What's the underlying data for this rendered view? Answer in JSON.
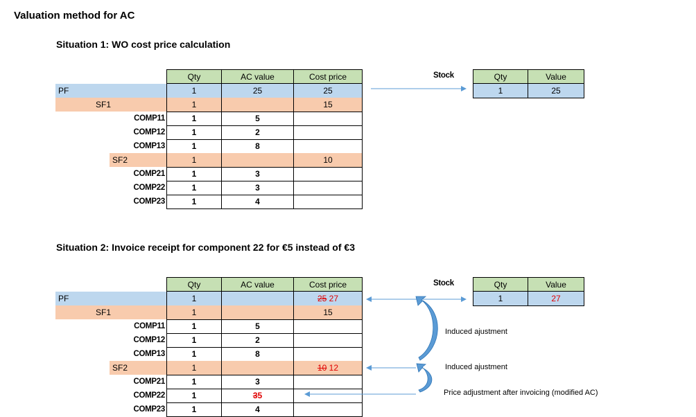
{
  "title": "Valuation method for AC",
  "situation1": {
    "heading": "Situation 1: WO cost price calculation",
    "headers": {
      "qty": "Qty",
      "ac_value": "AC value",
      "cost_price": "Cost price"
    },
    "rows": [
      {
        "label": "PF",
        "qty": "1",
        "ac": "25",
        "cost": "25"
      },
      {
        "label": "SF1",
        "qty": "1",
        "ac": "",
        "cost": "15"
      },
      {
        "label": "COMP11",
        "qty": "1",
        "ac": "5",
        "cost": ""
      },
      {
        "label": "COMP12",
        "qty": "1",
        "ac": "2",
        "cost": ""
      },
      {
        "label": "COMP13",
        "qty": "1",
        "ac": "8",
        "cost": ""
      },
      {
        "label": "SF2",
        "qty": "1",
        "ac": "",
        "cost": "10"
      },
      {
        "label": "COMP21",
        "qty": "1",
        "ac": "3",
        "cost": ""
      },
      {
        "label": "COMP22",
        "qty": "1",
        "ac": "3",
        "cost": ""
      },
      {
        "label": "COMP23",
        "qty": "1",
        "ac": "4",
        "cost": ""
      }
    ],
    "stock": {
      "label": "Stock",
      "qty_header": "Qty",
      "value_header": "Value",
      "qty": "1",
      "value": "25"
    }
  },
  "situation2": {
    "heading": "Situation 2: Invoice receipt for component 22 for €5 instead of €3",
    "headers": {
      "qty": "Qty",
      "ac_value": "AC value",
      "cost_price": "Cost price"
    },
    "rows": [
      {
        "label": "PF",
        "qty": "1",
        "ac": "",
        "cost_old": "25",
        "cost_new": "27"
      },
      {
        "label": "SF1",
        "qty": "1",
        "ac": "",
        "cost": "15"
      },
      {
        "label": "COMP11",
        "qty": "1",
        "ac": "5",
        "cost": ""
      },
      {
        "label": "COMP12",
        "qty": "1",
        "ac": "2",
        "cost": ""
      },
      {
        "label": "COMP13",
        "qty": "1",
        "ac": "8",
        "cost": ""
      },
      {
        "label": "SF2",
        "qty": "1",
        "ac": "",
        "cost_old": "10",
        "cost_new": "12"
      },
      {
        "label": "COMP21",
        "qty": "1",
        "ac": "3",
        "cost": ""
      },
      {
        "label": "COMP22",
        "qty": "1",
        "ac_old": "3",
        "ac_new": "5",
        "cost": ""
      },
      {
        "label": "COMP23",
        "qty": "1",
        "ac": "4",
        "cost": ""
      }
    ],
    "stock": {
      "label": "Stock",
      "qty_header": "Qty",
      "value_header": "Value",
      "qty": "1",
      "value": "27"
    },
    "annotations": {
      "induced1": "Induced ajustment",
      "induced2": "Induced ajustment",
      "price_adjustment": "Price adjustment after invoicing (modified AC)"
    }
  },
  "colors": {
    "header": "#c6e0b4",
    "pf_row": "#bdd7ee",
    "sf_row": "#f8cbad",
    "arrow": "#5b9bd5",
    "change": "#e00000"
  }
}
